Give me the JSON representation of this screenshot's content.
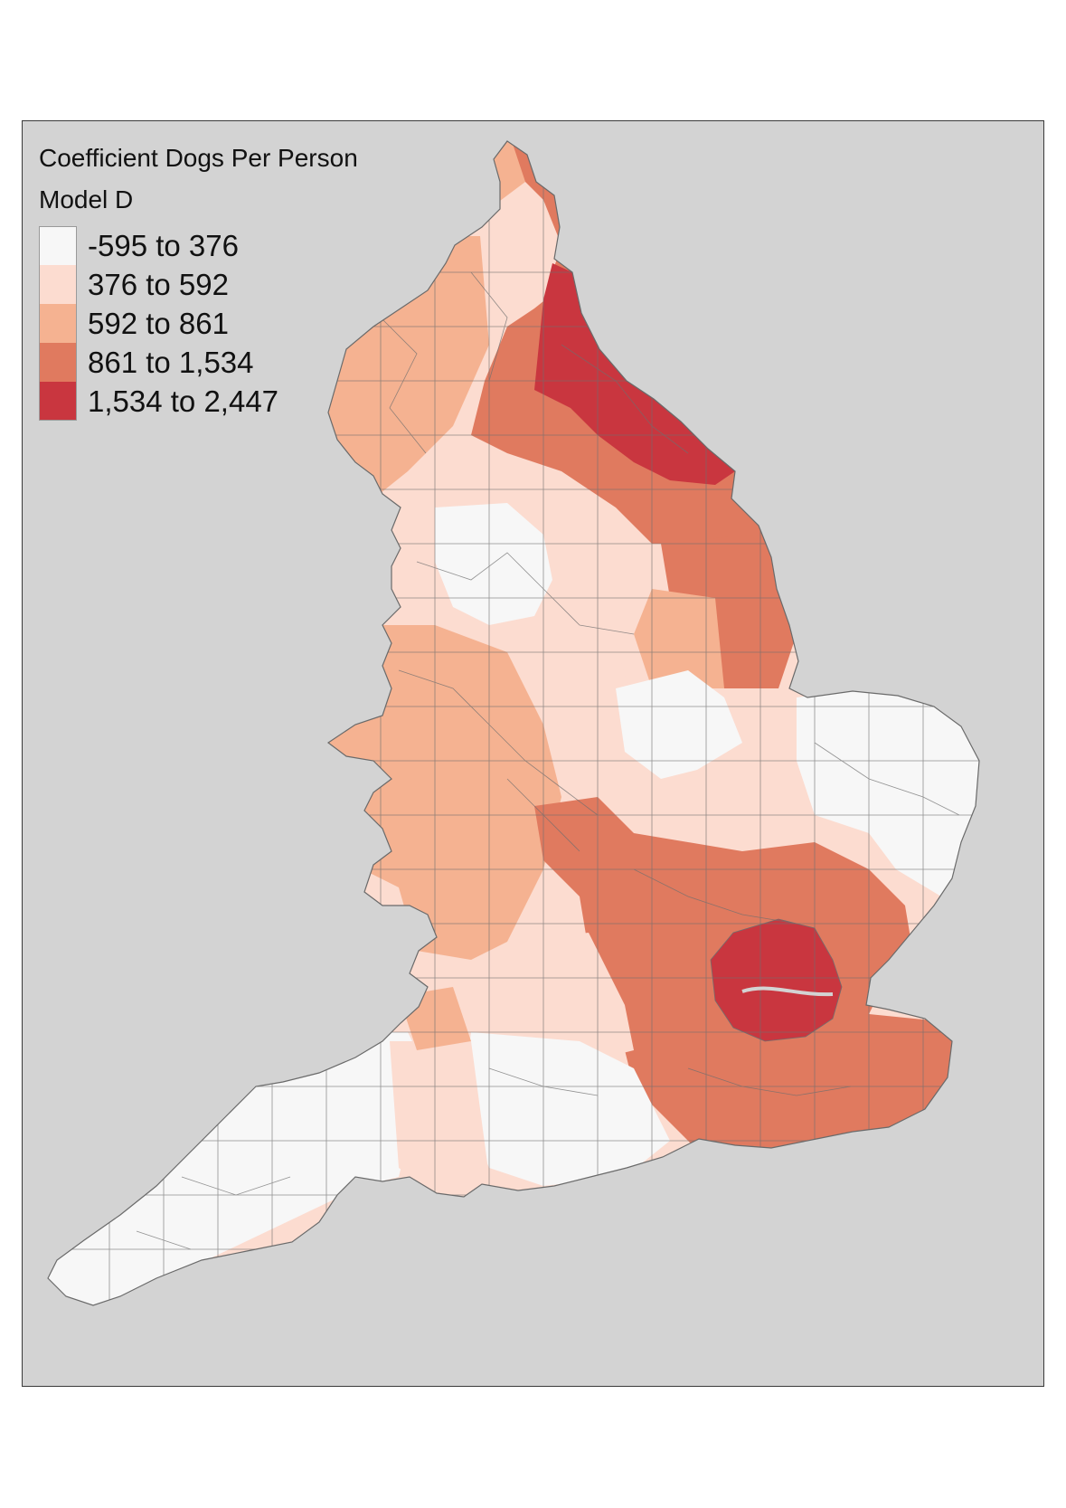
{
  "legend": {
    "title": "Coefficient Dogs Per Person",
    "subtitle": "Model D",
    "classes": [
      {
        "label": "-595 to 376",
        "color": "#f7f7f7"
      },
      {
        "label": "376 to 592",
        "color": "#fcdcd0"
      },
      {
        "label": "592 to 861",
        "color": "#f5b291"
      },
      {
        "label": "861 to 1,534",
        "color": "#e07a5f"
      },
      {
        "label": "1,534 to 2,447",
        "color": "#c9363f"
      }
    ]
  },
  "map": {
    "background_color": "#d3d3d3",
    "boundary_color": "#6f6f6f"
  }
}
